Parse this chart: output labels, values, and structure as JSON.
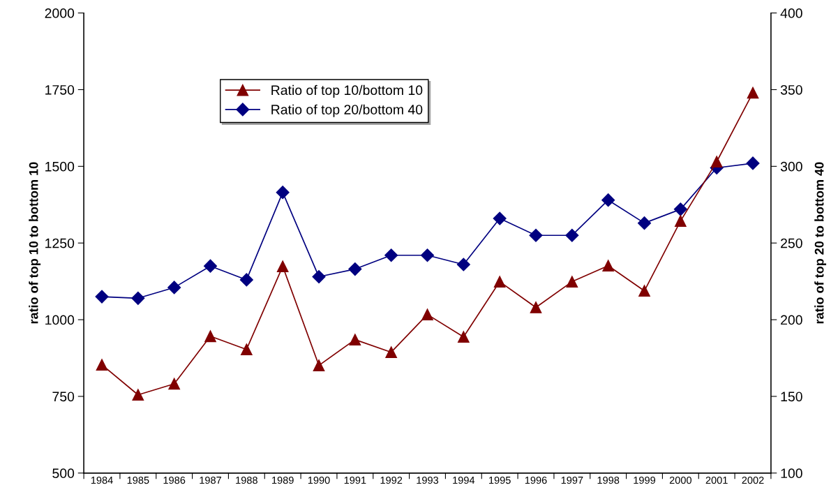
{
  "chart_data": {
    "type": "line",
    "ylabel": "ratio of top 10 to bottom 10",
    "y2label": "ratio of top 20 to bottom 40",
    "categories": [
      "1984",
      "1985",
      "1986",
      "1987",
      "1988",
      "1989",
      "1990",
      "1991",
      "1992",
      "1993",
      "1994",
      "1995",
      "1996",
      "1997",
      "1998",
      "1999",
      "2000",
      "2001",
      "2002"
    ],
    "series": [
      {
        "name": "Ratio of top 10/bottom 10",
        "color": "#800000",
        "marker": "triangle",
        "axis": "y",
        "values": [
          853,
          755,
          791,
          946,
          903,
          1174,
          851,
          935,
          894,
          1017,
          944,
          1124,
          1040,
          1124,
          1176,
          1094,
          1322,
          1515,
          1740
        ]
      },
      {
        "name": "Ratio of top 20/bottom 40",
        "color": "#000080",
        "marker": "diamond",
        "axis": "y2",
        "values": [
          215,
          214,
          221,
          235,
          226,
          283,
          228,
          233,
          242,
          242,
          236,
          266,
          255,
          255,
          278,
          263,
          272,
          299,
          302
        ]
      }
    ],
    "ylim": [
      500,
      2000
    ],
    "yticks": [
      500,
      750,
      1000,
      1250,
      1500,
      1750,
      2000
    ],
    "y2lim": [
      100,
      400
    ],
    "y2ticks": [
      100,
      150,
      200,
      250,
      300,
      350,
      400
    ],
    "legend": "top",
    "grid": false,
    "line_style": "solid"
  }
}
